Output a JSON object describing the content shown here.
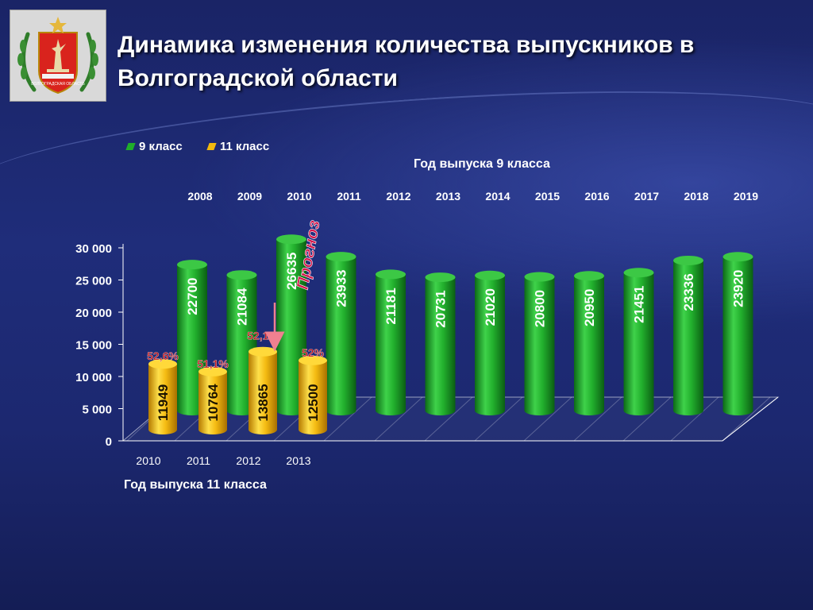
{
  "title": "Динамика изменения количества выпускников в Волгоградской области",
  "emblem_text": "ВОЛГОГРАДСКАЯ ОБЛАСТЬ",
  "legend": {
    "grade9_label": "9 класс",
    "grade11_label": "11 класс"
  },
  "top_axis_title": "Год выпуска 9 класса",
  "bottom_axis_title": "Год выпуска 11 класса",
  "forecast_label": "Прогноз",
  "colors": {
    "grade9": "#1fae2a",
    "grade11": "#f2b90d",
    "percent_text": "#c0121a",
    "forecast_text": "#d4144a"
  },
  "chart_data": {
    "type": "bar",
    "ylim": [
      0,
      30000
    ],
    "yticks": [
      "0",
      "5 000",
      "10 000",
      "15 000",
      "20 000",
      "25 000",
      "30 000"
    ],
    "grid": true,
    "legend_position": "top-left",
    "series": [
      {
        "name": "9 класс",
        "x_top": [
          "2008",
          "2009",
          "2010",
          "2011",
          "2012",
          "2013",
          "2014",
          "2015",
          "2016",
          "2017",
          "2018",
          "2019"
        ],
        "values": [
          22700,
          21084,
          26635,
          23933,
          21181,
          20731,
          21020,
          20800,
          20950,
          21451,
          23336,
          23920
        ]
      },
      {
        "name": "11 класс",
        "x_bottom": [
          "2010",
          "2011",
          "2012",
          "2013"
        ],
        "values": [
          11949,
          10764,
          13865,
          12500
        ],
        "percent_labels": [
          "52,6%",
          "51,1%",
          "52,1%",
          "52%"
        ]
      }
    ]
  }
}
